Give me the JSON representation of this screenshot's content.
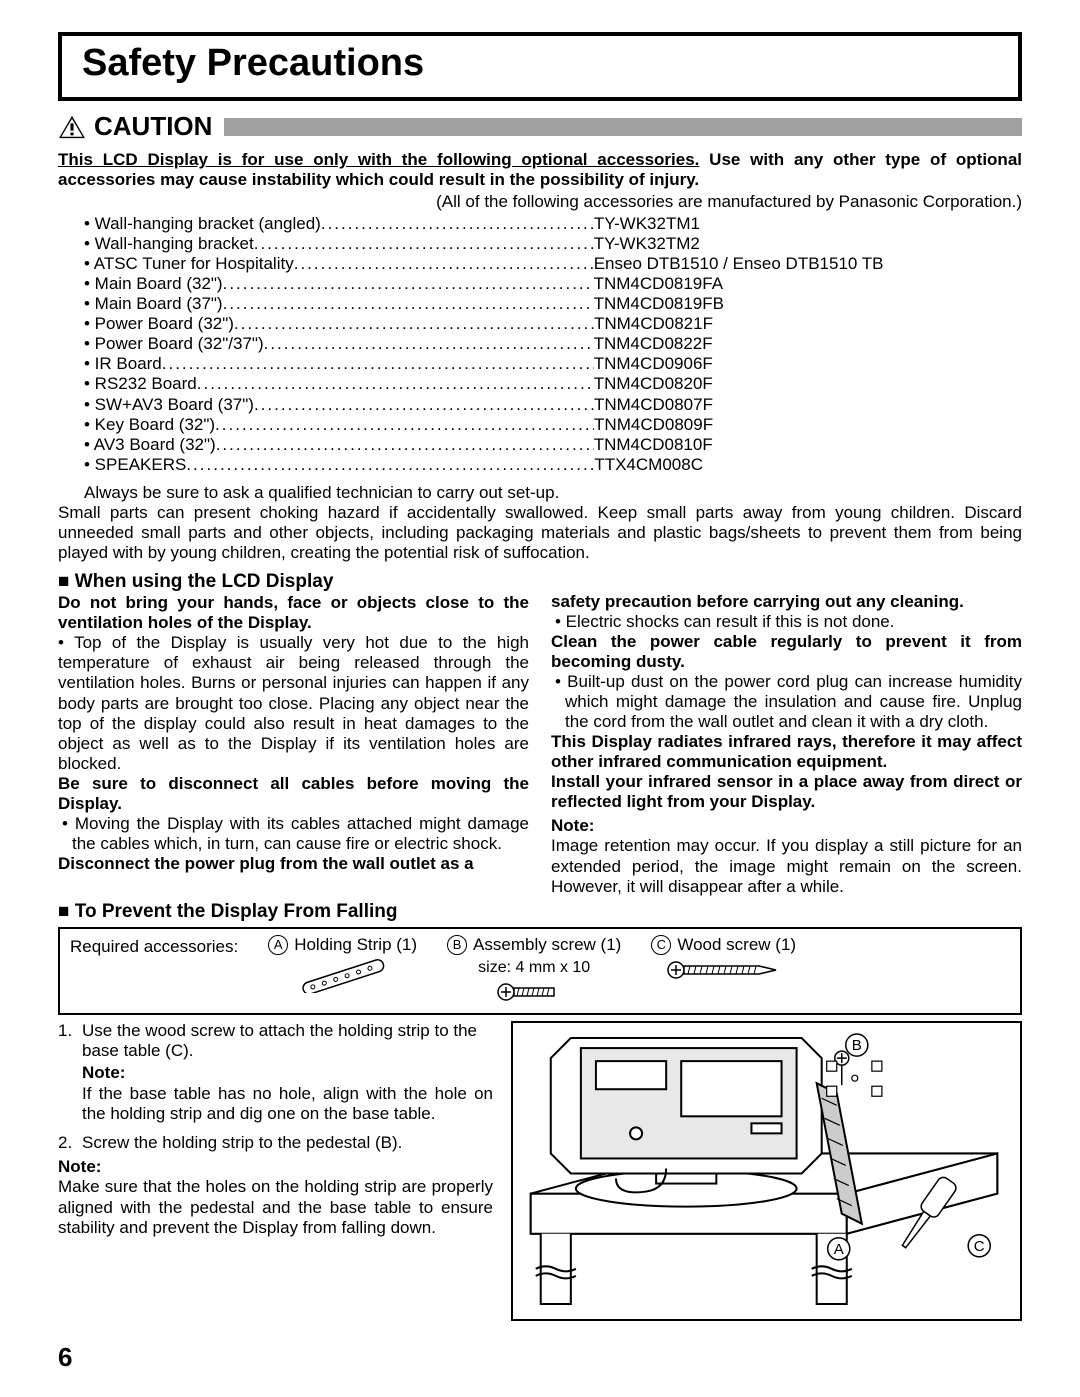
{
  "page_number": "6",
  "title": "Safety Precautions",
  "caution_label": "CAUTION",
  "intro_underlined": "This LCD Display is for use only with the following optional accessories.",
  "intro_bold_rest": " Use with any other type of optional accessories may cause instability which could result in the possibility of injury.",
  "manufacturer_note": "(All of the following accessories are manufactured by Panasonic Corporation.)",
  "accessories": [
    {
      "label": "• Wall-hanging bracket (angled) ",
      "value": "TY-WK32TM1"
    },
    {
      "label": "• Wall-hanging bracket ",
      "value": "TY-WK32TM2"
    },
    {
      "label": "• ATSC Tuner for Hospitality ",
      "value": "Enseo DTB1510 / Enseo DTB1510 TB"
    },
    {
      "label": "• Main Board (32\") ",
      "value": "TNM4CD0819FA"
    },
    {
      "label": "• Main Board (37\") ",
      "value": "TNM4CD0819FB"
    },
    {
      "label": "• Power Board (32\") ",
      "value": "TNM4CD0821F"
    },
    {
      "label": "• Power Board (32\"/37\") ",
      "value": "TNM4CD0822F"
    },
    {
      "label": "• IR Board ",
      "value": "TNM4CD0906F"
    },
    {
      "label": "• RS232 Board ",
      "value": "TNM4CD0820F"
    },
    {
      "label": "• SW+AV3 Board (37\") ",
      "value": "TNM4CD0807F"
    },
    {
      "label": "• Key Board (32\") ",
      "value": "TNM4CD0809F"
    },
    {
      "label": "• AV3 Board (32\") ",
      "value": "TNM4CD0810F"
    },
    {
      "label": "• SPEAKERS ",
      "value": "TTX4CM008C"
    }
  ],
  "setup_note": "Always be sure to ask a qualified technician to carry out set-up.",
  "small_parts": "Small parts can present choking hazard if accidentally swallowed. Keep small parts away from young children. Discard unneeded small parts and other objects, including packaging materials and plastic bags/sheets to prevent them from being played with by young children, creating the potential risk of suffocation.",
  "section_when_using": "■ When using the LCD Display",
  "left_col": {
    "h1": "Do not bring your hands, face or objects close to the ventilation holes of the Display.",
    "p1": "• Top of the Display is usually very hot due to the high temperature of exhaust air being released through the ventilation holes. Burns or personal injuries can happen if any body parts are brought too close. Placing any object near the top of the display could also result in heat damages to the object as well as to the Display if its ventilation holes are blocked.",
    "h2": "Be sure to disconnect all cables before moving the Display.",
    "p2": "• Moving the Display with its cables attached might damage the cables which, in turn, can cause fire or electric shock.",
    "h3": "Disconnect the power plug from the wall outlet as a"
  },
  "right_col": {
    "h0": "safety precaution before carrying out any cleaning.",
    "p0": "• Electric shocks can result if this is not done.",
    "h1": "Clean the power cable regularly to prevent it from becoming dusty.",
    "p1": "• Built-up dust on the power cord plug can increase humidity which might damage the insulation and cause fire. Unplug the cord from the wall outlet and clean it with a dry cloth.",
    "h2": "This Display radiates infrared rays, therefore it may affect other infrared communication equipment.",
    "h3": "Install your infrared sensor in a place away from direct or reflected light from your Display.",
    "note_h": "Note:",
    "note_p": "Image retention may occur. If you display a still picture for an extended period, the image might remain on the screen. However, it will disappear after a while."
  },
  "section_prevent": "■ To Prevent the Display From Falling",
  "required_label": "Required accessories:",
  "req_items": {
    "a": {
      "letter": "A",
      "label": "Holding Strip (1)"
    },
    "b": {
      "letter": "B",
      "label": "Assembly screw (1)",
      "sub": "size: 4 mm x 10"
    },
    "c": {
      "letter": "C",
      "label": "Wood screw (1)"
    }
  },
  "steps": {
    "s1": "Use the wood screw to attach the holding strip to the base table (C).",
    "note1_h": "Note:",
    "note1_b": "If the base table has no hole, align with the hole on the holding strip and dig one on the base table.",
    "s2": "Screw the holding strip to the pedestal (B).",
    "note2_h": "Note:",
    "note2_b": "Make sure that the holes on the holding strip are properly aligned with the pedestal and the base table to ensure stability and prevent the Display from falling down."
  },
  "diagram_labels": {
    "a": "A",
    "b": "B",
    "c": "C"
  }
}
